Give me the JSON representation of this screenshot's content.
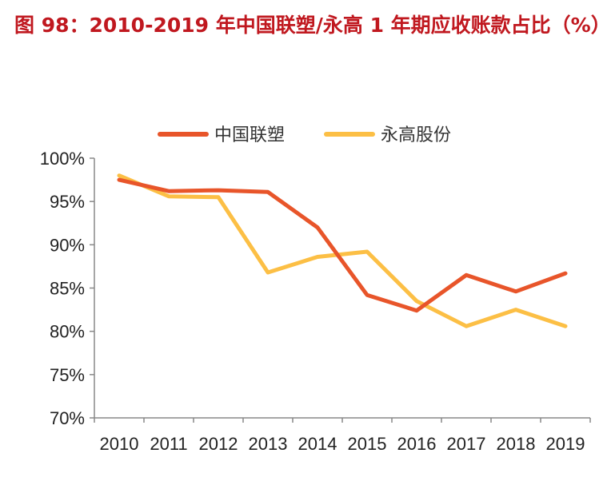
{
  "figure": {
    "title": "图 98：2010-2019 年中国联塑/永高 1 年期应收账款占比（%）"
  },
  "chart_data": {
    "type": "line",
    "title": "图 98：2010-2019 年中国联塑/永高 1 年期应收账款占比（%）",
    "xlabel": "",
    "ylabel": "",
    "x": [
      "2010",
      "2011",
      "2012",
      "2013",
      "2014",
      "2015",
      "2016",
      "2017",
      "2018",
      "2019"
    ],
    "ylim": [
      70,
      100
    ],
    "yticks": [
      70,
      75,
      80,
      85,
      90,
      95,
      100
    ],
    "ytick_labels": [
      "70%",
      "75%",
      "80%",
      "85%",
      "90%",
      "95%",
      "100%"
    ],
    "grid": false,
    "legend_position": "top",
    "series": [
      {
        "name": "中国联塑",
        "color": "#e8552a",
        "values": [
          97.5,
          96.2,
          96.3,
          96.1,
          92.0,
          84.2,
          82.4,
          86.5,
          84.6,
          86.7
        ]
      },
      {
        "name": "永高股份",
        "color": "#fcbf45",
        "values": [
          98.0,
          95.6,
          95.5,
          86.8,
          88.6,
          89.2,
          83.5,
          80.6,
          82.5,
          80.6
        ]
      }
    ]
  }
}
